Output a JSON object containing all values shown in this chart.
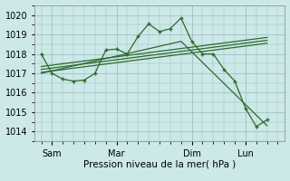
{
  "background_color": "#cce8e8",
  "grid_color": "#99bbbb",
  "line_color": "#2d6a2d",
  "xlabel": "Pression niveau de la mer( hPa )",
  "ylim": [
    1013.5,
    1020.5
  ],
  "yticks": [
    1014,
    1015,
    1016,
    1017,
    1018,
    1019,
    1020
  ],
  "x_tick_labels": [
    "Sam",
    "Mar",
    "Dim",
    "Lun"
  ],
  "x_tick_positions": [
    0.5,
    3.5,
    7.0,
    9.5
  ],
  "xlim": [
    -0.3,
    11.3
  ],
  "series1_x": [
    0.0,
    0.5,
    1.0,
    1.5,
    2.0,
    2.5,
    3.0,
    3.5,
    4.0,
    4.5,
    5.0,
    5.5,
    6.0,
    6.5,
    7.0,
    7.5,
    8.0,
    8.5,
    9.0,
    9.5,
    10.0,
    10.5
  ],
  "series1_y": [
    1018.0,
    1017.0,
    1016.7,
    1016.6,
    1016.65,
    1017.0,
    1018.2,
    1018.25,
    1018.0,
    1018.9,
    1019.55,
    1019.15,
    1019.3,
    1019.85,
    1018.65,
    1018.0,
    1018.0,
    1017.2,
    1016.6,
    1015.2,
    1014.25,
    1014.6
  ],
  "series2_x": [
    0.0,
    6.5,
    10.5
  ],
  "series2_y": [
    1017.0,
    1018.65,
    1014.3
  ],
  "trend1_x": [
    0.0,
    10.5
  ],
  "trend1_y": [
    1017.05,
    1018.55
  ],
  "trend2_x": [
    0.0,
    10.5
  ],
  "trend2_y": [
    1017.2,
    1018.7
  ],
  "trend3_x": [
    0.0,
    10.5
  ],
  "trend3_y": [
    1017.35,
    1018.85
  ]
}
